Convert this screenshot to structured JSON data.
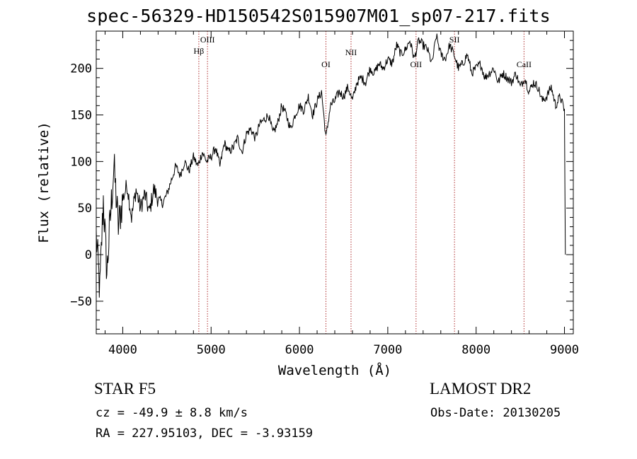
{
  "chart_data": {
    "type": "line",
    "title": "spec-56329-HD150542S015907M01_sp07-217.fits",
    "xlabel": "Wavelength (Å)",
    "ylabel": "Flux (relative)",
    "xlim": [
      3700,
      9100
    ],
    "ylim": [
      -85,
      240
    ],
    "x_ticks": [
      4000,
      5000,
      6000,
      7000,
      8000,
      9000
    ],
    "y_ticks": [
      -50,
      0,
      50,
      100,
      150,
      200
    ],
    "grid": false,
    "series": [
      {
        "color": "#000000",
        "x": [
          3700,
          3740,
          3780,
          3820,
          3860,
          3900,
          3950,
          4000,
          4050,
          4100,
          4150,
          4200,
          4250,
          4300,
          4350,
          4400,
          4450,
          4500,
          4550,
          4600,
          4650,
          4700,
          4750,
          4800,
          4850,
          4900,
          4950,
          5000,
          5050,
          5100,
          5150,
          5200,
          5250,
          5300,
          5350,
          5400,
          5450,
          5500,
          5550,
          5600,
          5650,
          5700,
          5750,
          5800,
          5850,
          5900,
          5950,
          6000,
          6050,
          6100,
          6150,
          6200,
          6250,
          6300,
          6350,
          6400,
          6450,
          6500,
          6550,
          6600,
          6650,
          6700,
          6750,
          6800,
          6850,
          6900,
          6950,
          7000,
          7050,
          7100,
          7150,
          7200,
          7250,
          7300,
          7350,
          7400,
          7450,
          7500,
          7550,
          7600,
          7650,
          7700,
          7750,
          7800,
          7850,
          7900,
          7950,
          8000,
          8050,
          8100,
          8150,
          8200,
          8250,
          8300,
          8350,
          8400,
          8450,
          8500,
          8550,
          8600,
          8650,
          8700,
          8750,
          8800,
          8850,
          8900,
          8950,
          9000,
          9010
        ],
        "y": [
          20,
          -40,
          60,
          -20,
          40,
          95,
          30,
          60,
          75,
          40,
          70,
          50,
          65,
          45,
          70,
          60,
          55,
          65,
          80,
          95,
          85,
          100,
          90,
          105,
          95,
          110,
          100,
          105,
          115,
          95,
          120,
          110,
          115,
          125,
          110,
          130,
          135,
          125,
          140,
          145,
          150,
          130,
          140,
          160,
          150,
          135,
          150,
          160,
          155,
          170,
          150,
          165,
          175,
          125,
          160,
          165,
          175,
          170,
          180,
          165,
          185,
          190,
          185,
          200,
          195,
          205,
          200,
          210,
          205,
          225,
          215,
          220,
          230,
          210,
          230,
          225,
          220,
          205,
          235,
          215,
          210,
          225,
          215,
          200,
          205,
          215,
          195,
          200,
          205,
          190,
          195,
          200,
          185,
          195,
          190,
          185,
          195,
          180,
          190,
          175,
          185,
          180,
          165,
          170,
          180,
          160,
          170,
          155,
          0
        ]
      }
    ],
    "lines": [
      {
        "label": "Hβ",
        "x": 4861
      },
      {
        "label": "OIII",
        "x": 4959
      },
      {
        "label": "OI",
        "x": 6300
      },
      {
        "label": "NII",
        "x": 6584
      },
      {
        "label": "OII",
        "x": 7320
      },
      {
        "label": "SII",
        "x": 7755
      },
      {
        "label": "CaII",
        "x": 8542
      }
    ]
  },
  "info": {
    "left_line1": "STAR    F5",
    "left_line2": "cz = -49.9 ± 8.8 km/s",
    "left_line3": "RA = 227.95103, DEC =  -3.93159",
    "right_line1": "LAMOST DR2",
    "right_line2": "Obs-Date: 20130205"
  },
  "colors": {
    "axis": "#000000",
    "marker_line": "#b03030"
  }
}
